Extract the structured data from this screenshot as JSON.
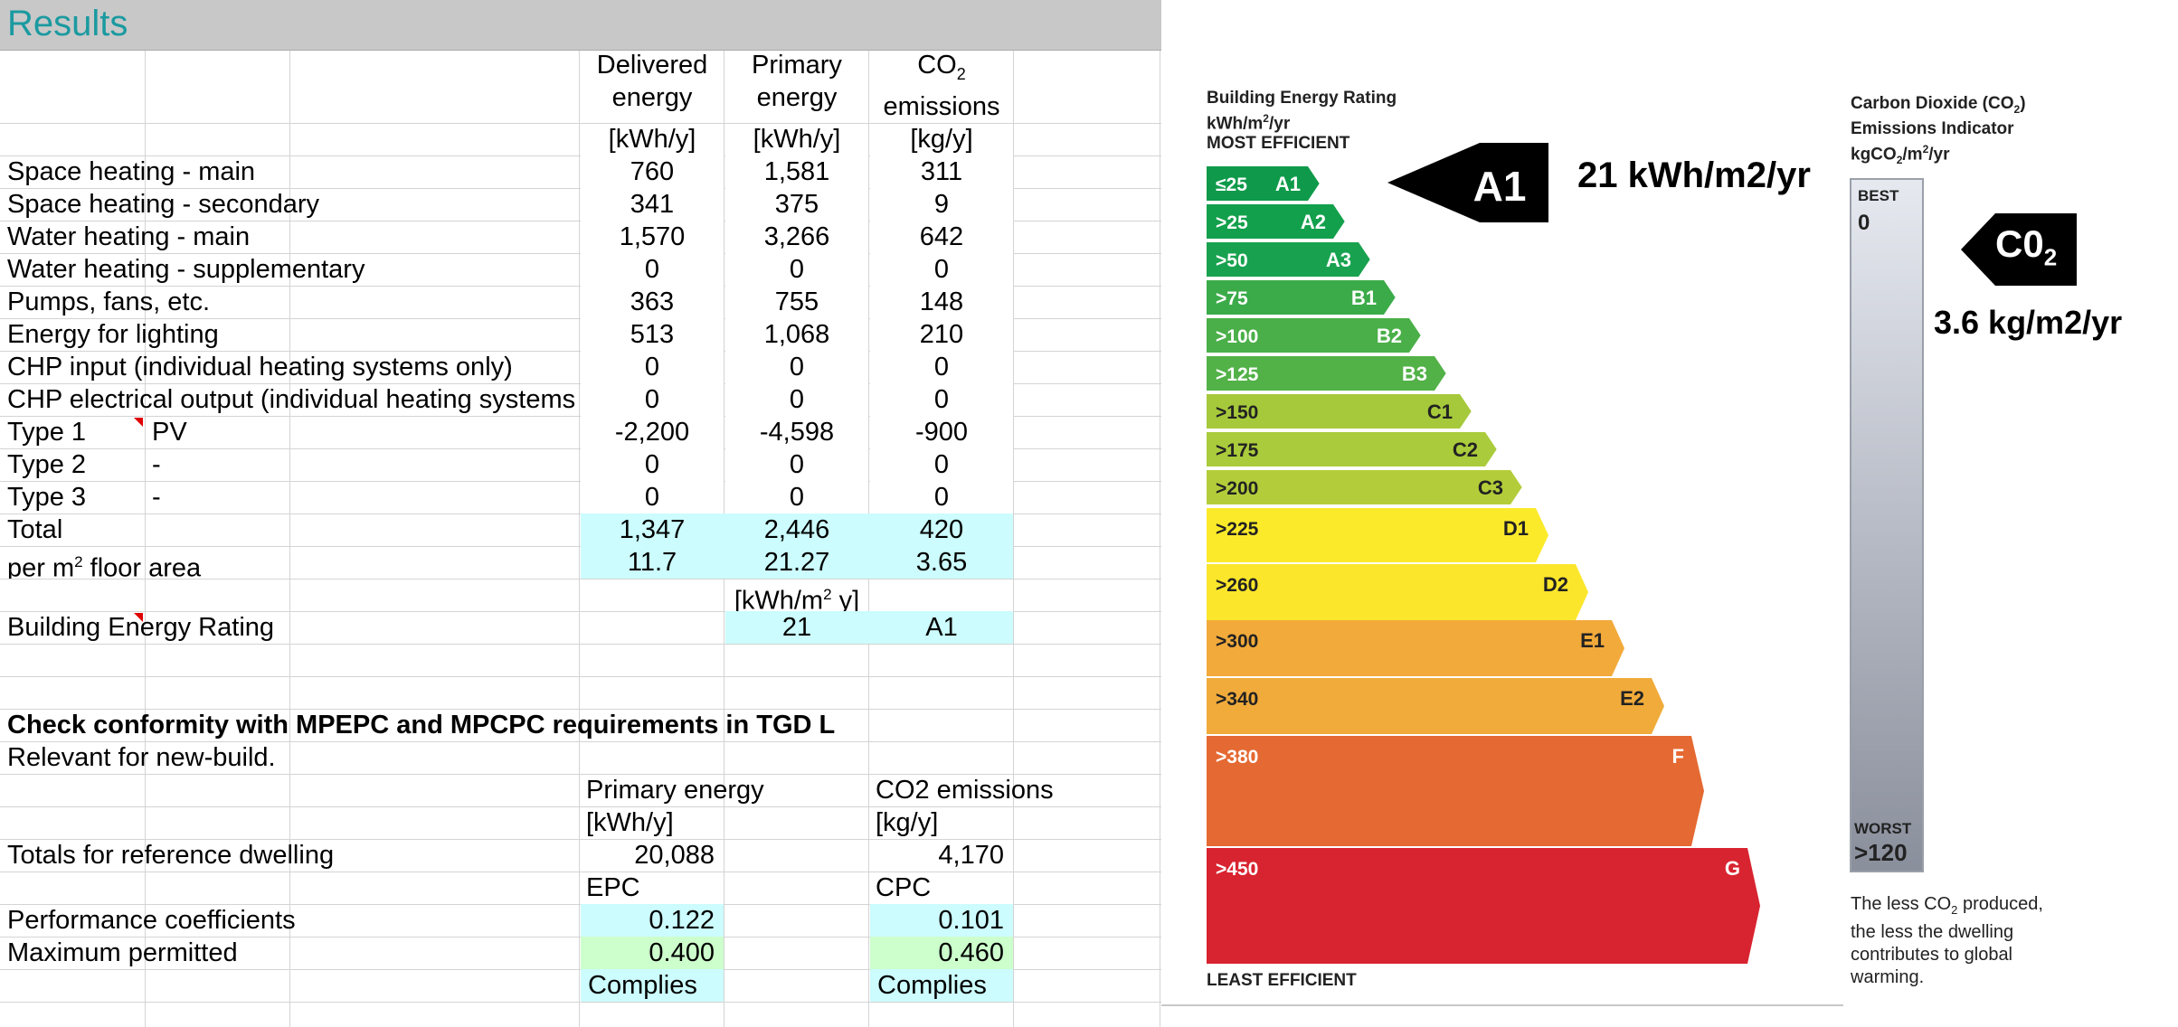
{
  "sheet": {
    "title": "Results",
    "col_headers": {
      "delivered": [
        "Delivered",
        "energy"
      ],
      "primary": [
        "Primary",
        "energy"
      ],
      "co2": [
        "CO",
        "emissions"
      ],
      "co2_sub": "2"
    },
    "units": {
      "delivered": "[kWh/y]",
      "primary": "[kWh/y]",
      "co2": "[kg/y]"
    },
    "rows": [
      {
        "label": "Space heating - main",
        "delivered": "760",
        "primary": "1,581",
        "co2": "311"
      },
      {
        "label": "Space heating - secondary",
        "delivered": "341",
        "primary": "375",
        "co2": "9"
      },
      {
        "label": "Water heating - main",
        "delivered": "1,570",
        "primary": "3,266",
        "co2": "642"
      },
      {
        "label": "Water heating - supplementary",
        "delivered": "0",
        "primary": "0",
        "co2": "0"
      },
      {
        "label": "Pumps, fans, etc.",
        "delivered": "363",
        "primary": "755",
        "co2": "148"
      },
      {
        "label": "Energy for lighting",
        "delivered": "513",
        "primary": "1,068",
        "co2": "210"
      },
      {
        "label": "CHP input (individual heating systems only)",
        "delivered": "0",
        "primary": "0",
        "co2": "0"
      },
      {
        "label": "CHP electrical output (individual heating systems only)",
        "delivered": "0",
        "primary": "0",
        "co2": "0"
      },
      {
        "label": "Type 1",
        "type": "PV",
        "delivered": "-2,200",
        "primary": "-4,598",
        "co2": "-900"
      },
      {
        "label": "Type 2",
        "type": "-",
        "delivered": "0",
        "primary": "0",
        "co2": "0"
      },
      {
        "label": "Type 3",
        "type": "-",
        "delivered": "0",
        "primary": "0",
        "co2": "0"
      }
    ],
    "total": {
      "label": "Total",
      "delivered": "1,347",
      "primary": "2,446",
      "co2": "420"
    },
    "per_area": {
      "label_pre": "per m",
      "label_sup": "2",
      "label_post": " floor area",
      "delivered": "11.7",
      "primary": "21.27",
      "co2": "3.65"
    },
    "ber_unit": {
      "pre": "[kWh/m",
      "sup": "2",
      "post": " y]"
    },
    "ber_row": {
      "label": "Building Energy Rating",
      "value": "21",
      "grade": "A1"
    },
    "conformity": {
      "heading": "Check conformity with MPEPC and MPCPC requirements in TGD L",
      "note": "Relevant for new-build.",
      "primary_header": "Primary energy",
      "co2_header": "CO2 emissions",
      "primary_unit": "[kWh/y]",
      "co2_unit": "[kg/y]",
      "reference_label": "Totals for reference dwelling",
      "reference_primary": "20,088",
      "reference_co2": "4,170",
      "epc": "EPC",
      "cpc": "CPC",
      "coef_label": "Performance coefficients",
      "coef_epc": "0.122",
      "coef_cpc": "0.101",
      "max_label": "Maximum permitted",
      "max_epc": "0.400",
      "max_cpc": "0.460",
      "result_epc": "Complies",
      "result_cpc": "Complies"
    }
  },
  "ber_chart": {
    "caption_lines": [
      "Building Energy Rating",
      "kWh/m",
      "/yr"
    ],
    "caption_sup": "2",
    "most_efficient": "MOST EFFICIENT",
    "least_efficient": "LEAST EFFICIENT",
    "bands": [
      {
        "range": "≤25",
        "grade": "A1",
        "color": "#0e9a4a"
      },
      {
        "range": ">25",
        "grade": "A2",
        "color": "#13a04c"
      },
      {
        "range": ">50",
        "grade": "A3",
        "color": "#18a24f"
      },
      {
        "range": ">75",
        "grade": "B1",
        "color": "#3bab49"
      },
      {
        "range": ">100",
        "grade": "B2",
        "color": "#4aaf48"
      },
      {
        "range": ">125",
        "grade": "B3",
        "color": "#52b147"
      },
      {
        "range": ">150",
        "grade": "C1",
        "color": "#a6c93b"
      },
      {
        "range": ">175",
        "grade": "C2",
        "color": "#aacb3b"
      },
      {
        "range": ">200",
        "grade": "C3",
        "color": "#b3cd3a"
      },
      {
        "range": ">225",
        "grade": "D1",
        "color": "#fbea2a"
      },
      {
        "range": ">260",
        "grade": "D2",
        "color": "#fbe62b"
      },
      {
        "range": ">300",
        "grade": "E1",
        "color": "#f2aa3a"
      },
      {
        "range": ">340",
        "grade": "E2",
        "color": "#f0ab3b"
      },
      {
        "range": ">380",
        "grade": "F",
        "color": "#e56932"
      },
      {
        "range": ">450",
        "grade": "G",
        "color": "#d82430"
      }
    ],
    "rating_arrow": {
      "grade": "A1",
      "value": "21 kWh/m2/yr"
    },
    "co2_indicator": {
      "title_lines": [
        "Carbon Dioxide (CO",
        ")",
        "Emissions Indicator",
        "kgCO",
        "/m",
        "/yr"
      ],
      "sub2": "2",
      "sup2": "2",
      "best": "BEST",
      "best_value": "0",
      "worst": "WORST",
      "worst_value": ">120",
      "arrow_label": "C0",
      "arrow_sub": "2",
      "value": "3.6 kg/m2/yr",
      "note_lines": [
        "The less CO",
        " produced,",
        "the less the dwelling",
        "contributes to global",
        "warming."
      ],
      "note_sub": "2"
    }
  }
}
